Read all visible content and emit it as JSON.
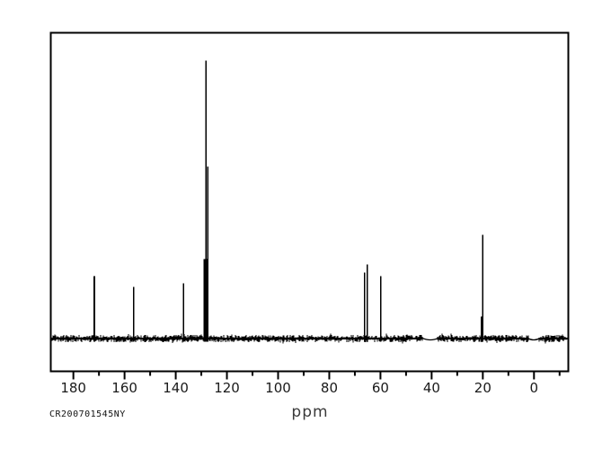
{
  "page": {
    "background": "#ffffff",
    "foreground": "#000000"
  },
  "labels": {
    "sample_id": "CR200701545NY",
    "xlabel": "ppm"
  },
  "chart_data": {
    "type": "line",
    "subtype": "13C-NMR-spectrum",
    "title": "",
    "xlabel": "ppm",
    "ylabel": "",
    "legend": false,
    "grid": false,
    "annotation": "CR200701545NY",
    "x_axis": {
      "unit": "ppm",
      "direction": "values-decrease-to-the-right",
      "range": [
        189,
        -13.5
      ],
      "major_ticks": [
        180,
        160,
        140,
        120,
        100,
        80,
        60,
        40,
        20,
        0
      ],
      "major_tick_labels": [
        "180",
        "160",
        "140",
        "120",
        "100",
        "80",
        "60",
        "40",
        "20",
        "0"
      ],
      "minor_ticks": [
        170,
        150,
        130,
        110,
        90,
        70,
        50,
        30,
        10,
        -10
      ]
    },
    "peaks": [
      {
        "ppm": 171.8,
        "rel_intensity": 0.233
      },
      {
        "ppm": 156.4,
        "rel_intensity": 0.195
      },
      {
        "ppm": 136.9,
        "rel_intensity": 0.208
      },
      {
        "ppm": 128.8,
        "rel_intensity": 0.294
      },
      {
        "ppm": 128.2,
        "rel_intensity": 1.0
      },
      {
        "ppm": 127.8,
        "rel_intensity": 0.294
      },
      {
        "ppm": 127.5,
        "rel_intensity": 0.623
      },
      {
        "ppm": 66.2,
        "rel_intensity": 0.246
      },
      {
        "ppm": 65.2,
        "rel_intensity": 0.275
      },
      {
        "ppm": 59.9,
        "rel_intensity": 0.233
      },
      {
        "ppm": 20.5,
        "rel_intensity": 0.089
      },
      {
        "ppm": 20.1,
        "rel_intensity": 0.38
      }
    ],
    "baseline": {
      "noise_band": true,
      "flat_segments_ppm": [
        [
          43.3,
          37.7
        ],
        [
          2.2,
          -2.0
        ]
      ]
    }
  }
}
